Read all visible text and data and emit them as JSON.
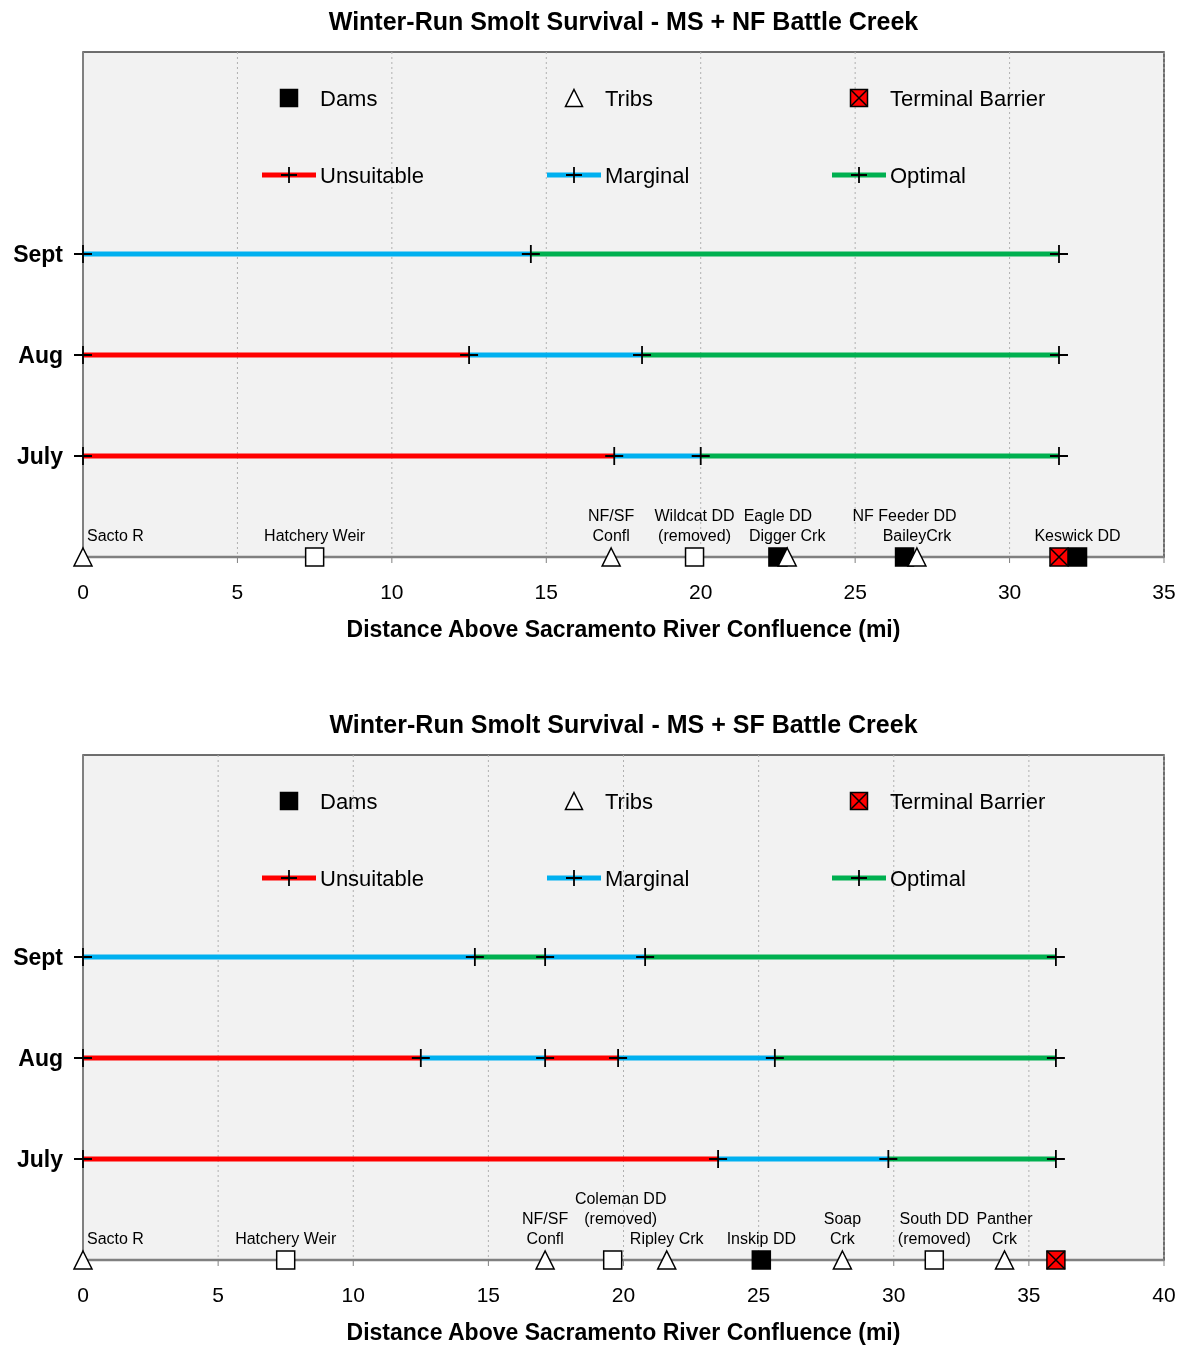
{
  "chart_data": [
    {
      "type": "bar",
      "orientation": "horizontal",
      "title": "Winter-Run Smolt Survival - MS + NF Battle Creek",
      "xlabel": "Distance Above Sacramento River Confluence (mi)",
      "xlim": [
        0,
        35
      ],
      "xticks": [
        0,
        5,
        10,
        15,
        20,
        25,
        30,
        35
      ],
      "categories": [
        "Sept",
        "Aug",
        "July",
        null
      ],
      "grid": "x",
      "legend": "top",
      "series": [
        {
          "type": "scatter",
          "name": "Dams",
          "color": "#000000",
          "marker": "square",
          "x": [
            null,
            null,
            null
          ],
          "values": [
            22.5,
            26.6,
            32.2
          ],
          "value_labels": [
            "Eagle DD",
            "NF Feeder DD",
            "Keswick DD"
          ]
        },
        {
          "type": "scatter",
          "name": "Tribs",
          "color": "#ffffff",
          "marker": "triangle",
          "x": [
            null,
            null,
            null,
            null
          ],
          "values": [
            0,
            17.1,
            22.8,
            27.0
          ],
          "value_labels": [
            "Sacto R",
            "NF/SF\nConfl",
            "Digger Crk",
            "BaileyCrk"
          ]
        },
        {
          "type": "scatter",
          "name": "Terminal Barrier",
          "color": "#ff0000",
          "marker": "square",
          "x": [
            null
          ],
          "values": [
            31.6
          ]
        },
        {
          "type": "scatter",
          "color": "#000000",
          "marker": "cross",
          "x": [
            "Sept",
            "Sept",
            "Sept",
            "Aug",
            "Aug",
            "Aug",
            "Aug",
            "July",
            "July",
            "July",
            "July"
          ],
          "values": [
            0,
            14.5,
            31.6,
            0,
            12.5,
            18.1,
            31.6,
            0,
            17.2,
            20.0,
            31.6
          ]
        },
        {
          "name": "Unsuitable",
          "color": "#ff0000",
          "base": [
            null,
            0,
            0,
            null
          ],
          "values": [
            null,
            12.5,
            17.2,
            null
          ]
        },
        {
          "name": "Marginal",
          "color": "#00b0f0",
          "base": [
            0,
            12.5,
            17.2,
            null
          ],
          "values": [
            14.5,
            5.6,
            2.8,
            null
          ]
        },
        {
          "name": "Optimal",
          "color": "#00b050",
          "base": [
            14.5,
            18.1,
            20.0,
            null
          ],
          "values": [
            17.1,
            13.5,
            11.6,
            null
          ]
        },
        {
          "type": "scatter",
          "color": "#ffffff",
          "marker": "square",
          "x": [
            null,
            null
          ],
          "values": [
            7.5,
            19.8
          ],
          "value_labels": [
            "Hatchery Weir",
            "Wildcat DD\n(removed)"
          ]
        }
      ]
    },
    {
      "type": "bar",
      "orientation": "horizontal",
      "title": "Winter-Run Smolt Survival - MS + SF Battle Creek",
      "xlabel": "Distance Above Sacramento River Confluence (mi)",
      "xlim": [
        0,
        40
      ],
      "xticks": [
        0,
        5,
        10,
        15,
        20,
        25,
        30,
        35,
        40
      ],
      "categories": [
        "Sept",
        "Aug",
        "July",
        null
      ],
      "grid": "x",
      "legend": "top",
      "series": [
        {
          "type": "scatter",
          "name": "Dams",
          "color": "#000000",
          "marker": "square",
          "x": [
            null
          ],
          "values": [
            25.1
          ],
          "value_labels": [
            "Inskip DD"
          ]
        },
        {
          "type": "scatter",
          "name": "Tribs",
          "color": "#ffffff",
          "marker": "triangle",
          "x": [
            null,
            null,
            null,
            null,
            null
          ],
          "values": [
            0,
            17.1,
            21.6,
            28.1,
            34.1
          ],
          "value_labels": [
            "Sacto R",
            "NF/SF\nConfl",
            "Ripley Crk",
            "Soap\nCrk",
            "Panther\nCrk"
          ]
        },
        {
          "type": "scatter",
          "name": "Terminal Barrier",
          "color": "#ff0000",
          "marker": "square",
          "x": [
            null
          ],
          "values": [
            36.0
          ]
        },
        {
          "type": "scatter",
          "color": "#000000",
          "marker": "cross",
          "x": [
            "Sept",
            "Sept",
            "Sept",
            "Sept",
            "Sept",
            "Aug",
            "Aug",
            "Aug",
            "Aug",
            "Aug",
            "Aug",
            "July",
            "July",
            "July",
            "July"
          ],
          "values": [
            0,
            14.5,
            17.1,
            20.8,
            36.0,
            0,
            12.5,
            17.1,
            19.8,
            25.6,
            36.0,
            0,
            23.5,
            29.8,
            36.0
          ]
        },
        {
          "name": "Unsuitable",
          "color": "#ff0000",
          "base": [
            null,
            0,
            0,
            null
          ],
          "values": [
            null,
            12.5,
            23.5,
            null
          ]
        },
        {
          "name": "Marginal",
          "color": "#00b0f0",
          "base": [
            0,
            12.5,
            23.5,
            null
          ],
          "values": [
            14.5,
            4.6,
            6.3,
            null
          ]
        },
        {
          "name": "Optimal",
          "color": "#00b050",
          "base": [
            14.5,
            25.6,
            29.8,
            null
          ],
          "values": [
            2.6,
            10.4,
            6.2,
            null
          ]
        },
        {
          "color": "#ff0000",
          "base": [
            null,
            17.1,
            null,
            null
          ],
          "values": [
            null,
            2.7,
            null,
            null
          ]
        },
        {
          "color": "#00b0f0",
          "base": [
            17.1,
            19.8,
            null,
            null
          ],
          "values": [
            3.7,
            5.8,
            null,
            null
          ]
        },
        {
          "color": "#00b050",
          "base": [
            20.8,
            null,
            null,
            null
          ],
          "values": [
            15.2,
            null,
            null,
            null
          ]
        },
        {
          "type": "scatter",
          "color": "#ffffff",
          "marker": "square",
          "x": [
            null,
            null,
            null
          ],
          "values": [
            7.5,
            19.6,
            31.5
          ],
          "value_labels": [
            "Hatchery Weir",
            "Coleman DD\n(removed)",
            "South DD\n(removed)"
          ]
        }
      ]
    }
  ]
}
